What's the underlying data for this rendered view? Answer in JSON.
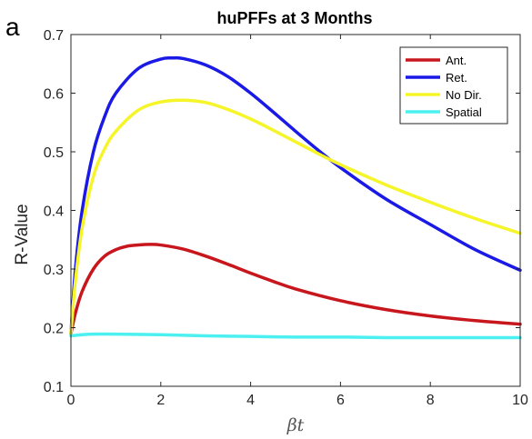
{
  "panel_letter": "a",
  "chart_data": {
    "type": "line",
    "title": "huPFFs at 3 Months",
    "xlabel": "βt",
    "ylabel": "R-Value",
    "xlim": [
      0,
      10
    ],
    "ylim": [
      0.1,
      0.7
    ],
    "xticks": [
      0,
      2,
      4,
      6,
      8,
      10
    ],
    "yticks": [
      0.1,
      0.2,
      0.3,
      0.4,
      0.5,
      0.6,
      0.7
    ],
    "grid": false,
    "legend_position": "top-right",
    "series": [
      {
        "name": "Ant.",
        "color": "#c8161d",
        "x": [
          0,
          0.1,
          0.25,
          0.5,
          0.75,
          1,
          1.25,
          1.5,
          1.75,
          2,
          2.5,
          3,
          3.5,
          4,
          4.5,
          5,
          6,
          7,
          8,
          9,
          10
        ],
        "y": [
          0.19,
          0.225,
          0.262,
          0.3,
          0.322,
          0.333,
          0.339,
          0.341,
          0.342,
          0.341,
          0.334,
          0.322,
          0.308,
          0.293,
          0.279,
          0.266,
          0.246,
          0.231,
          0.22,
          0.212,
          0.206
        ]
      },
      {
        "name": "Ret.",
        "color": "#1a19e6",
        "x": [
          0,
          0.1,
          0.25,
          0.5,
          0.75,
          1,
          1.5,
          2,
          2.25,
          2.5,
          3,
          3.5,
          4,
          4.5,
          5,
          5.5,
          6,
          7,
          8,
          9,
          10
        ],
        "y": [
          0.19,
          0.3,
          0.4,
          0.5,
          0.56,
          0.6,
          0.642,
          0.658,
          0.66,
          0.659,
          0.648,
          0.628,
          0.6,
          0.568,
          0.535,
          0.503,
          0.473,
          0.42,
          0.376,
          0.333,
          0.298
        ]
      },
      {
        "name": "No Dir.",
        "color": "#f5f52a",
        "x": [
          0,
          0.1,
          0.25,
          0.5,
          0.75,
          1,
          1.5,
          2,
          2.5,
          3,
          3.5,
          4,
          4.5,
          5,
          5.5,
          6,
          7,
          8,
          9,
          10
        ],
        "y": [
          0.19,
          0.28,
          0.37,
          0.458,
          0.505,
          0.535,
          0.571,
          0.585,
          0.588,
          0.584,
          0.572,
          0.556,
          0.537,
          0.517,
          0.497,
          0.478,
          0.444,
          0.414,
          0.386,
          0.361
        ]
      },
      {
        "name": "Spatial",
        "color": "#4cf0f0",
        "x": [
          0,
          0.25,
          0.5,
          1,
          2,
          3,
          4,
          5,
          6,
          7,
          8,
          9,
          10
        ],
        "y": [
          0.186,
          0.188,
          0.189,
          0.189,
          0.188,
          0.186,
          0.185,
          0.184,
          0.184,
          0.183,
          0.183,
          0.183,
          0.183
        ]
      }
    ]
  }
}
